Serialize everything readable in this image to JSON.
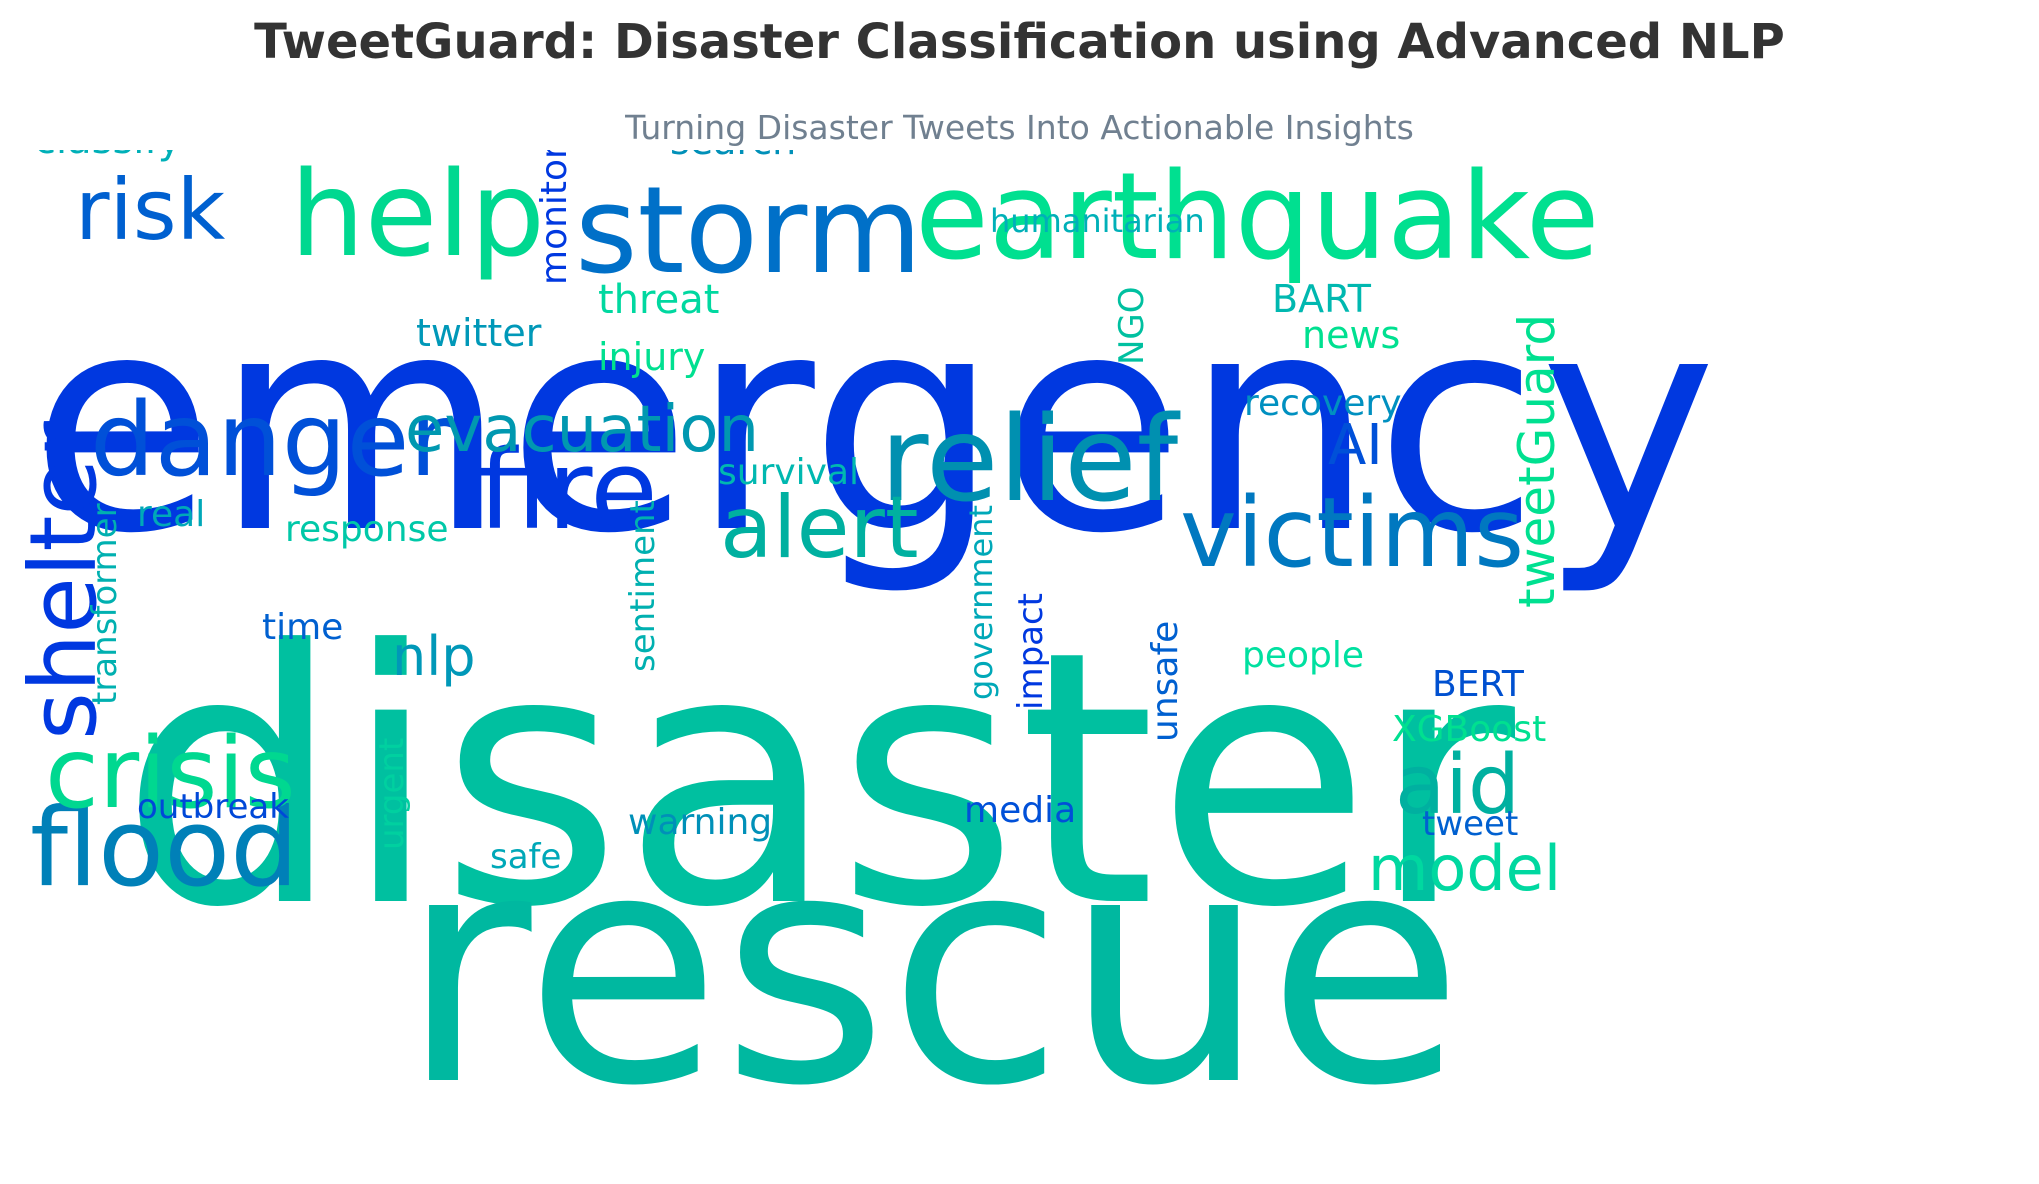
{
  "header": {
    "title": "TweetGuard: Disaster Classification using Advanced NLP",
    "subtitle": "Turning Disaster Tweets Into Actionable Insights"
  },
  "colors": {
    "title": "#333333",
    "subtitle": "#708090",
    "deep_blue": "#0038e0",
    "teal": "#00c0a0",
    "sea_green": "#00e090",
    "steel_blue": "#0088b8"
  },
  "words": [
    {
      "id": "emergency",
      "text": "emergency"
    },
    {
      "id": "disaster",
      "text": "disaster"
    },
    {
      "id": "rescue",
      "text": "rescue"
    },
    {
      "id": "earthquake",
      "text": "earthquake"
    },
    {
      "id": "storm",
      "text": "storm"
    },
    {
      "id": "help",
      "text": "help"
    },
    {
      "id": "relief",
      "text": "relief"
    },
    {
      "id": "fire",
      "text": "fire"
    },
    {
      "id": "danger",
      "text": "danger"
    },
    {
      "id": "victims",
      "text": "victims"
    },
    {
      "id": "flood",
      "text": "flood"
    },
    {
      "id": "crisis",
      "text": "crisis"
    },
    {
      "id": "shelter",
      "text": "shelter"
    },
    {
      "id": "alert",
      "text": "alert"
    },
    {
      "id": "risk",
      "text": "risk"
    },
    {
      "id": "evacuation",
      "text": "evacuation"
    },
    {
      "id": "aid",
      "text": "aid"
    },
    {
      "id": "model",
      "text": "model"
    },
    {
      "id": "tweetguard",
      "text": "tweetGuard"
    },
    {
      "id": "nlp",
      "text": "nlp"
    },
    {
      "id": "ai",
      "text": "AI"
    },
    {
      "id": "classify",
      "text": "classify"
    },
    {
      "id": "search",
      "text": "search"
    },
    {
      "id": "monitor",
      "text": "monitor"
    },
    {
      "id": "humanitarian",
      "text": "humanitarian"
    },
    {
      "id": "threat",
      "text": "threat"
    },
    {
      "id": "bart",
      "text": "BART"
    },
    {
      "id": "twitter",
      "text": "twitter"
    },
    {
      "id": "ngo",
      "text": "NGO"
    },
    {
      "id": "news",
      "text": "news"
    },
    {
      "id": "injury",
      "text": "injury"
    },
    {
      "id": "recovery",
      "text": "recovery"
    },
    {
      "id": "survival",
      "text": "survival"
    },
    {
      "id": "real",
      "text": "real"
    },
    {
      "id": "transformer",
      "text": "transformer"
    },
    {
      "id": "response",
      "text": "response"
    },
    {
      "id": "sentiment",
      "text": "sentiment"
    },
    {
      "id": "government",
      "text": "government"
    },
    {
      "id": "time",
      "text": "time"
    },
    {
      "id": "impact",
      "text": "impact"
    },
    {
      "id": "unsafe",
      "text": "unsafe"
    },
    {
      "id": "people",
      "text": "people"
    },
    {
      "id": "bert",
      "text": "BERT"
    },
    {
      "id": "xgboost",
      "text": "XGBoost"
    },
    {
      "id": "urgent",
      "text": "urgent"
    },
    {
      "id": "outbreak",
      "text": "outbreak"
    },
    {
      "id": "media",
      "text": "media"
    },
    {
      "id": "warning",
      "text": "warning"
    },
    {
      "id": "tweet",
      "text": "tweet"
    },
    {
      "id": "safe",
      "text": "safe"
    }
  ]
}
